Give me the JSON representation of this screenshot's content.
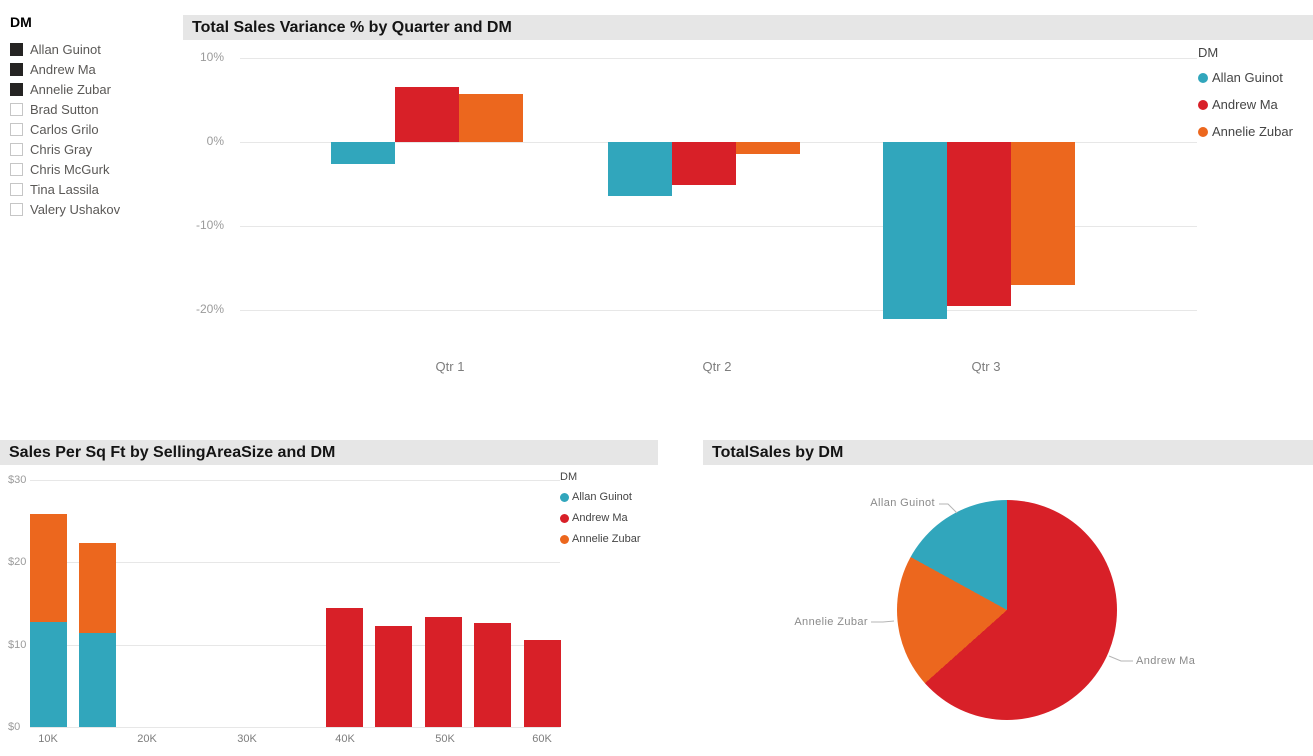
{
  "slicer": {
    "title": "DM",
    "items": [
      {
        "label": "Allan Guinot",
        "checked": true
      },
      {
        "label": "Andrew Ma",
        "checked": true
      },
      {
        "label": "Annelie Zubar",
        "checked": true
      },
      {
        "label": "Brad Sutton",
        "checked": false
      },
      {
        "label": "Carlos Grilo",
        "checked": false
      },
      {
        "label": "Chris Gray",
        "checked": false
      },
      {
        "label": "Chris McGurk",
        "checked": false
      },
      {
        "label": "Tina Lassila",
        "checked": false
      },
      {
        "label": "Valery Ushakov",
        "checked": false
      }
    ]
  },
  "colors": {
    "teal": "#31A6BC",
    "red": "#D82028",
    "orange": "#EC671E",
    "title_bar_bg": "#E6E6E6"
  },
  "chart_data": [
    {
      "type": "bar",
      "title": "Total Sales Variance % by Quarter and DM",
      "categories": [
        "Qtr 1",
        "Qtr 2",
        "Qtr 3"
      ],
      "series": [
        {
          "name": "Allan Guinot",
          "color": "#31A6BC",
          "values": [
            -2.6,
            -6.5,
            -21.1
          ]
        },
        {
          "name": "Andrew Ma",
          "color": "#D82028",
          "values": [
            6.5,
            -5.2,
            -19.5
          ]
        },
        {
          "name": "Annelie Zubar",
          "color": "#EC671E",
          "values": [
            5.7,
            -1.5,
            -17.0
          ]
        }
      ],
      "yticks": {
        "labels": [
          "10%",
          "0%",
          "-10%",
          "-20%"
        ],
        "values": [
          10,
          0,
          -10,
          -20
        ]
      },
      "ylim": [
        -24,
        11.5
      ],
      "grid": true,
      "legend_title": "DM",
      "legend_position": "right"
    },
    {
      "type": "bar",
      "title": "Sales Per Sq Ft by SellingAreaSize and DM",
      "xlabel_note": "stacked columns on continuous SellingAreaSize axis",
      "xticks": [
        "10K",
        "20K",
        "30K",
        "40K",
        "50K",
        "60K"
      ],
      "yticks": {
        "labels": [
          "$30",
          "$20",
          "$10",
          "$0"
        ],
        "values": [
          30,
          20,
          10,
          0
        ]
      },
      "ylim": [
        0,
        30
      ],
      "grid": true,
      "legend_title": "DM",
      "series": [
        {
          "name": "Allan Guinot",
          "color": "#31A6BC"
        },
        {
          "name": "Andrew Ma",
          "color": "#D82028"
        },
        {
          "name": "Annelie Zubar",
          "color": "#EC671E"
        }
      ],
      "bars": [
        {
          "x_k": 10,
          "segments": [
            {
              "name": "Allan Guinot",
              "value": 12.7,
              "color": "#31A6BC"
            },
            {
              "name": "Annelie Zubar",
              "value": 13.2,
              "color": "#EC671E"
            }
          ]
        },
        {
          "x_k": 15,
          "segments": [
            {
              "name": "Allan Guinot",
              "value": 11.4,
              "color": "#31A6BC"
            },
            {
              "name": "Annelie Zubar",
              "value": 10.9,
              "color": "#EC671E"
            }
          ]
        },
        {
          "x_k": 40,
          "segments": [
            {
              "name": "Andrew Ma",
              "value": 14.5,
              "color": "#D82028"
            }
          ]
        },
        {
          "x_k": 45,
          "segments": [
            {
              "name": "Andrew Ma",
              "value": 12.2,
              "color": "#D82028"
            }
          ]
        },
        {
          "x_k": 50,
          "segments": [
            {
              "name": "Andrew Ma",
              "value": 13.4,
              "color": "#D82028"
            }
          ]
        },
        {
          "x_k": 55,
          "segments": [
            {
              "name": "Andrew Ma",
              "value": 12.6,
              "color": "#D82028"
            }
          ]
        },
        {
          "x_k": 60,
          "segments": [
            {
              "name": "Andrew Ma",
              "value": 10.6,
              "color": "#D82028"
            }
          ]
        }
      ],
      "legend_position": "right"
    },
    {
      "type": "pie",
      "title": "TotalSales by DM",
      "slices": [
        {
          "name": "Andrew Ma",
          "pct": 63.4,
          "color": "#D82028"
        },
        {
          "name": "Annelie Zubar",
          "pct": 19.6,
          "color": "#EC671E"
        },
        {
          "name": "Allan Guinot",
          "pct": 17.0,
          "color": "#31A6BC"
        }
      ],
      "labels_outside": true
    }
  ]
}
